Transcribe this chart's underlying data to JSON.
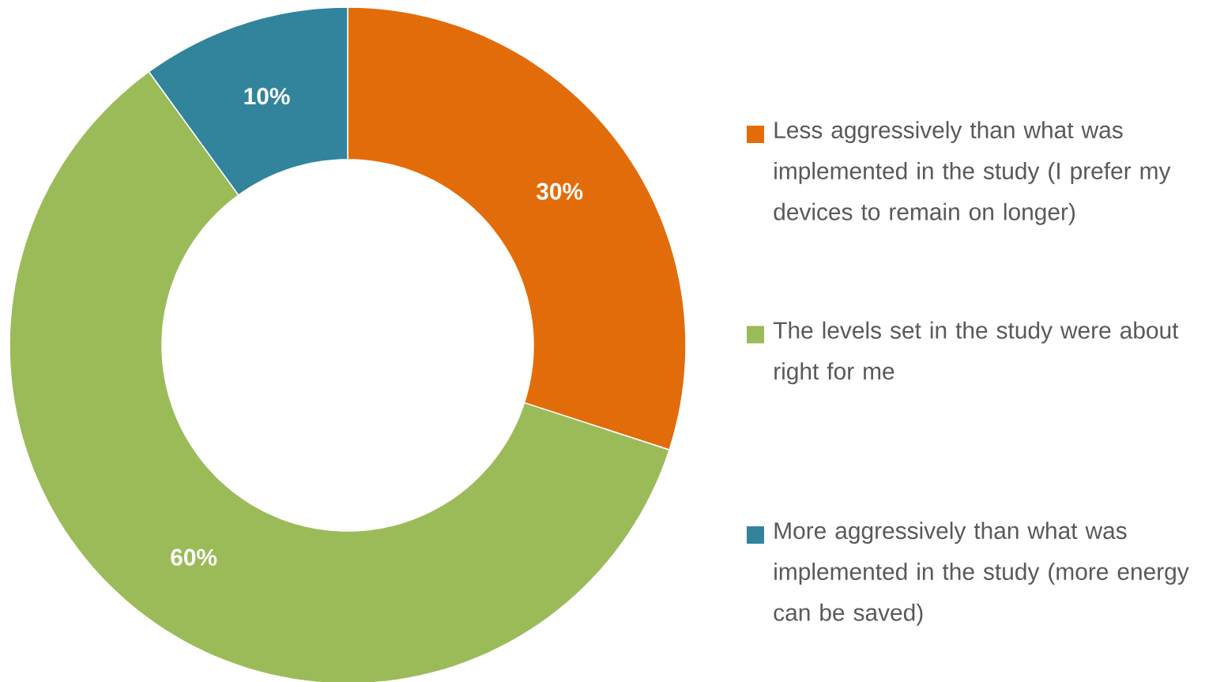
{
  "chart_data": {
    "type": "donut",
    "categories": [
      "Less aggressively than what was implemented in the study (I prefer my devices to remain on longer)",
      "The levels set in the study were about right for me",
      "More aggressively than what was implemented in the study (more energy can be saved)"
    ],
    "values": [
      30,
      60,
      10
    ],
    "colors": [
      "#e36c0a",
      "#9bbb59",
      "#31849b"
    ],
    "value_labels": [
      "30%",
      "60%",
      "10%"
    ],
    "legend": "right"
  }
}
